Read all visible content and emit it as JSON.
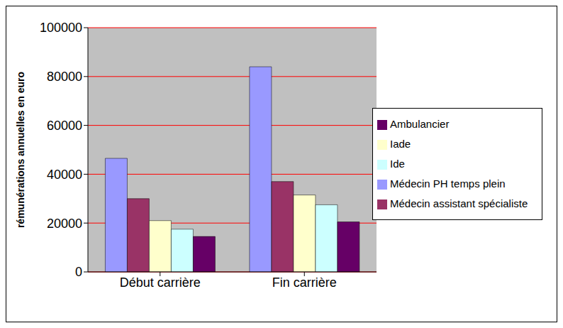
{
  "chart_data": {
    "type": "bar",
    "y_label": "rémunérations annuelles en euro",
    "categories": [
      "Début carrière",
      "Fin carrière"
    ],
    "series": [
      {
        "name": "Médecin PH temps plein",
        "color": "#9999FF",
        "values": [
          46500,
          84000
        ]
      },
      {
        "name": "Médecin assistant spécialiste",
        "color": "#993366",
        "values": [
          30000,
          37000
        ]
      },
      {
        "name": "Iade",
        "color": "#FFFFCC",
        "values": [
          21000,
          31500
        ]
      },
      {
        "name": "Ide",
        "color": "#CCFFFF",
        "values": [
          17500,
          27500
        ]
      },
      {
        "name": "Ambulancier",
        "color": "#660066",
        "values": [
          14500,
          20500
        ]
      }
    ],
    "ylim": [
      0,
      100000
    ],
    "yticks": [
      0,
      20000,
      40000,
      60000,
      80000,
      100000
    ],
    "grid": true,
    "legend": "right"
  }
}
